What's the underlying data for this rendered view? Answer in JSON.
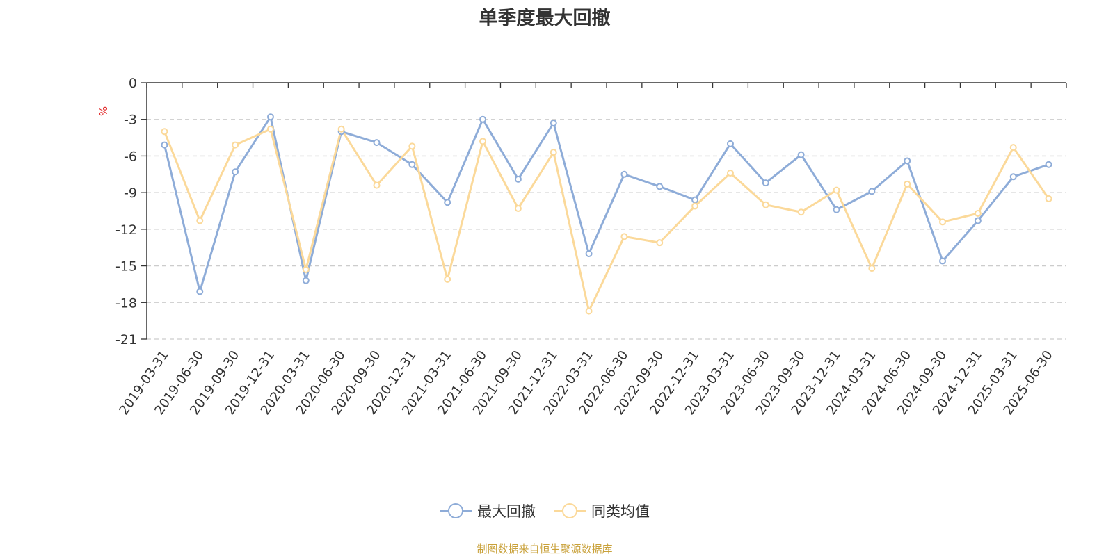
{
  "chart_data": {
    "type": "line",
    "title": "单季度最大回撤",
    "ylabel": "%",
    "ylim": [
      -21,
      0
    ],
    "yticks": [
      0,
      -3,
      -6,
      -9,
      -12,
      -15,
      -18,
      -21
    ],
    "grid": true,
    "legend_position": "bottom-center",
    "categories": [
      "2019-03-31",
      "2019-06-30",
      "2019-09-30",
      "2019-12-31",
      "2020-03-31",
      "2020-06-30",
      "2020-09-30",
      "2020-12-31",
      "2021-03-31",
      "2021-06-30",
      "2021-09-30",
      "2021-12-31",
      "2022-03-31",
      "2022-06-30",
      "2022-09-30",
      "2022-12-31",
      "2023-03-31",
      "2023-06-30",
      "2023-09-30",
      "2023-12-31",
      "2024-03-31",
      "2024-06-30",
      "2024-09-30",
      "2024-12-31",
      "2025-03-31",
      "2025-06-30"
    ],
    "series": [
      {
        "name": "最大回撤",
        "color": "#8eacd8",
        "values": [
          -5.1,
          -17.1,
          -7.3,
          -2.8,
          -16.2,
          -4.0,
          -4.9,
          -6.7,
          -9.8,
          -3.0,
          -7.9,
          -3.3,
          -14.0,
          -7.5,
          -8.5,
          -9.6,
          -5.0,
          -8.2,
          -5.9,
          -10.4,
          -8.9,
          -6.4,
          -14.6,
          -11.3,
          -7.7,
          -6.7
        ]
      },
      {
        "name": "同类均值",
        "color": "#fbd99a",
        "values": [
          -4.0,
          -11.3,
          -5.1,
          -3.8,
          -15.3,
          -3.8,
          -8.4,
          -5.2,
          -16.1,
          -4.8,
          -10.3,
          -5.7,
          -18.7,
          -12.6,
          -13.1,
          -10.1,
          -7.4,
          -10.0,
          -10.6,
          -8.8,
          -15.2,
          -8.3,
          -11.4,
          -10.7,
          -5.3,
          -9.5
        ]
      }
    ]
  },
  "legend": {
    "items": [
      "最大回撤",
      "同类均值"
    ]
  },
  "footer": {
    "source_note": "制图数据来自恒生聚源数据库"
  }
}
